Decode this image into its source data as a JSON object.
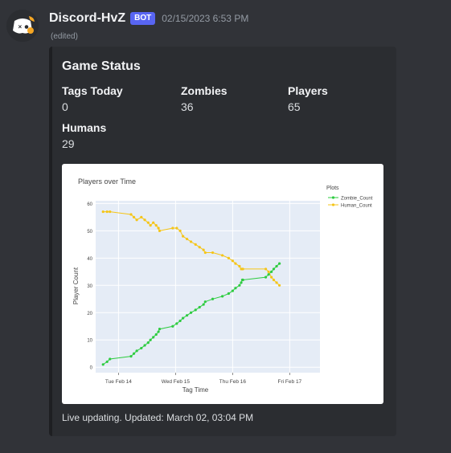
{
  "message": {
    "username": "Discord-HvZ",
    "bot_badge": "BOT",
    "timestamp": "02/15/2023 6:53 PM",
    "edited_label": "(edited)"
  },
  "embed": {
    "title": "Game Status",
    "fields": [
      {
        "name": "Tags Today",
        "value": "0"
      },
      {
        "name": "Zombies",
        "value": "36"
      },
      {
        "name": "Players",
        "value": "65"
      },
      {
        "name": "Humans",
        "value": "29"
      }
    ],
    "footer": "Live updating. Updated: March 02, 03:04 PM"
  },
  "chart_data": {
    "type": "line",
    "title": "Players over Time",
    "xlabel": "Tag Time",
    "ylabel": "Player Count",
    "legend_title": "Plots",
    "legend_position": "right",
    "x_tick_labels": [
      "Tue Feb 14",
      "Wed Feb 15",
      "Thu Feb 16",
      "Fri Feb 17"
    ],
    "x_range": [
      13.6,
      17.53
    ],
    "ylim": [
      -2,
      61
    ],
    "y_ticks": [
      0,
      10,
      20,
      30,
      40,
      50,
      60
    ],
    "grid": true,
    "series": [
      {
        "name": "Zombie_Count",
        "color": "#2ecc40",
        "x": [
          13.73,
          13.8,
          13.85,
          14.22,
          14.27,
          14.32,
          14.4,
          14.46,
          14.52,
          14.56,
          14.61,
          14.66,
          14.7,
          14.72,
          14.95,
          15.02,
          15.08,
          15.13,
          15.2,
          15.27,
          15.35,
          15.42,
          15.49,
          15.52,
          15.65,
          15.82,
          15.93,
          16.0,
          16.05,
          16.12,
          16.15,
          16.17,
          16.18,
          16.58,
          16.63,
          16.68,
          16.72,
          16.77,
          16.82
        ],
        "y": [
          1,
          2,
          3,
          4,
          5,
          6,
          7,
          8,
          9,
          10,
          11,
          12,
          13,
          14,
          15,
          16,
          17,
          18,
          19,
          20,
          21,
          22,
          23,
          24,
          25,
          26,
          27,
          28,
          29,
          30,
          31,
          32,
          32,
          33,
          34,
          35,
          36,
          37,
          38
        ]
      },
      {
        "name": "Human_Count",
        "color": "#f5c518",
        "x": [
          13.73,
          13.8,
          13.85,
          14.22,
          14.27,
          14.32,
          14.4,
          14.46,
          14.52,
          14.56,
          14.61,
          14.66,
          14.7,
          14.72,
          14.95,
          15.02,
          15.08,
          15.13,
          15.2,
          15.27,
          15.35,
          15.42,
          15.49,
          15.52,
          15.65,
          15.82,
          15.93,
          16.0,
          16.05,
          16.12,
          16.15,
          16.17,
          16.18,
          16.58,
          16.63,
          16.68,
          16.72,
          16.77,
          16.82
        ],
        "y": [
          57,
          57,
          57,
          56,
          55,
          54,
          55,
          54,
          53,
          52,
          53,
          52,
          51,
          50,
          51,
          51,
          50,
          48,
          47,
          46,
          45,
          44,
          43,
          42,
          42,
          41,
          40,
          39,
          38,
          37,
          36,
          36,
          36,
          36,
          35,
          33,
          32,
          31,
          30
        ]
      }
    ]
  }
}
